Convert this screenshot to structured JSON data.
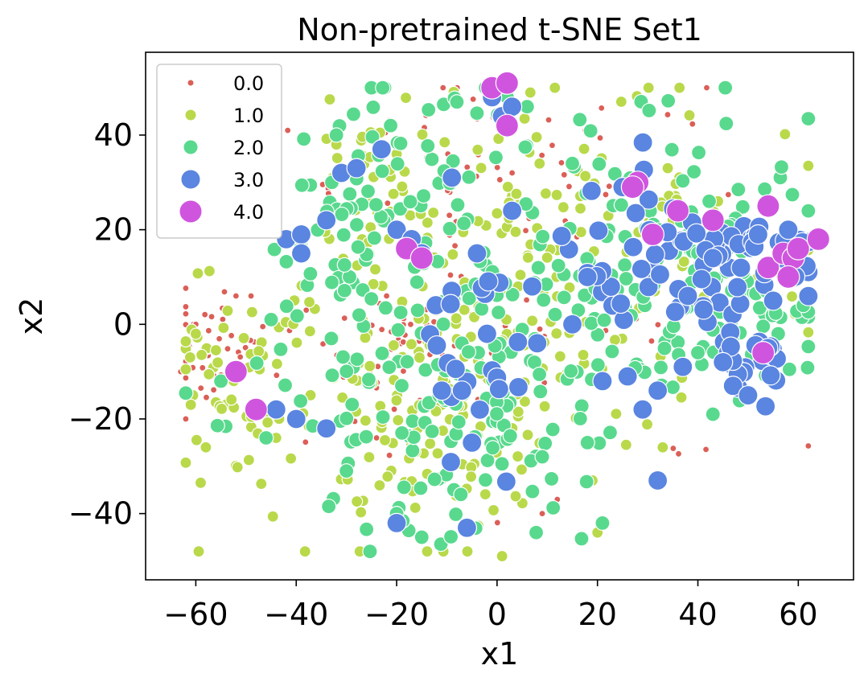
{
  "chart_data": {
    "type": "scatter",
    "title": "Non-pretrained t-SNE Set1",
    "xlabel": "x1",
    "ylabel": "x2",
    "xlim": [
      -70,
      71
    ],
    "ylim": [
      -54,
      57.5
    ],
    "xticks": [
      -60,
      -40,
      -20,
      0,
      20,
      40,
      60
    ],
    "yticks": [
      -40,
      -20,
      0,
      20,
      40
    ],
    "xtick_labels": [
      "−60",
      "−40",
      "−20",
      "0",
      "20",
      "40",
      "60"
    ],
    "ytick_labels": [
      "−40",
      "−20",
      "0",
      "20",
      "40"
    ],
    "grid": false,
    "legend_position": "upper-left",
    "seed": 7,
    "series": [
      {
        "name": "0.0",
        "color": "#db5f57",
        "marker_radius": 4,
        "clusters": [
          [
            -55,
            -5,
            6,
            6,
            40
          ],
          [
            -15,
            -8,
            10,
            8,
            55
          ],
          [
            0,
            15,
            25,
            20,
            90
          ],
          [
            -5,
            40,
            10,
            8,
            20
          ]
        ],
        "points": [
          [
            -63,
            -10
          ],
          [
            -60,
            0
          ],
          [
            -52,
            6
          ],
          [
            -49,
            6
          ],
          [
            -44,
            -8
          ],
          [
            -38,
            3
          ],
          [
            -24,
            -24
          ],
          [
            -22,
            6
          ],
          [
            2,
            51
          ],
          [
            3,
            32
          ],
          [
            11,
            -23
          ],
          [
            12,
            -37
          ],
          [
            20,
            28
          ],
          [
            9,
            -40
          ]
        ]
      },
      {
        "name": "1.0",
        "color": "#b9d94b",
        "marker_radius": 7,
        "clusters": [
          [
            -52,
            -10,
            6,
            9,
            55
          ],
          [
            -10,
            -15,
            18,
            16,
            170
          ],
          [
            20,
            20,
            22,
            18,
            110
          ],
          [
            -22,
            30,
            10,
            9,
            40
          ]
        ],
        "points": [
          [
            -61,
            -17
          ],
          [
            -60,
            -2
          ],
          [
            -58,
            -26
          ],
          [
            -44,
            -24
          ],
          [
            -20,
            36
          ],
          [
            -32,
            38
          ],
          [
            3,
            51
          ],
          [
            1,
            -49
          ],
          [
            20,
            -44
          ],
          [
            19,
            -33
          ],
          [
            33,
            -26
          ],
          [
            34,
            33
          ],
          [
            44,
            26
          ],
          [
            52,
            10
          ]
        ]
      },
      {
        "name": "2.0",
        "color": "#59d98e",
        "marker_radius": 9,
        "clusters": [
          [
            -8,
            -15,
            18,
            16,
            150
          ],
          [
            25,
            15,
            20,
            14,
            130
          ],
          [
            -28,
            20,
            10,
            10,
            45
          ],
          [
            48,
            2,
            9,
            9,
            45
          ],
          [
            -15,
            40,
            10,
            8,
            25
          ]
        ],
        "points": [
          [
            -32,
            40
          ],
          [
            -39,
            18
          ],
          [
            -33,
            -3
          ],
          [
            -30,
            -31
          ],
          [
            -20,
            -40
          ],
          [
            -15,
            -45
          ],
          [
            -8,
            47
          ],
          [
            2,
            48
          ],
          [
            6,
            46
          ],
          [
            9,
            -28
          ],
          [
            15,
            34
          ],
          [
            18,
            -25
          ],
          [
            21,
            -42
          ],
          [
            32,
            -33
          ],
          [
            40,
            -6
          ],
          [
            43,
            -19
          ],
          [
            49,
            11
          ],
          [
            56,
            -2
          ],
          [
            58,
            18
          ],
          [
            61,
            4
          ],
          [
            -55,
            -12
          ],
          [
            -45,
            1
          ],
          [
            -46,
            -24
          ]
        ]
      },
      {
        "name": "3.0",
        "color": "#5a85e0",
        "marker_radius": 12,
        "clusters": [
          [
            34,
            12,
            12,
            8,
            60
          ],
          [
            50,
            -10,
            5,
            5,
            20
          ],
          [
            56,
            15,
            5,
            6,
            20
          ],
          [
            -3,
            -15,
            6,
            10,
            14
          ],
          [
            -5,
            10,
            5,
            4,
            8
          ]
        ],
        "points": [
          [
            -1,
            48
          ],
          [
            1,
            44
          ],
          [
            3,
            46
          ],
          [
            -31,
            32
          ],
          [
            -23,
            37
          ],
          [
            -42,
            18
          ],
          [
            -39,
            19
          ],
          [
            -34,
            22
          ],
          [
            -39,
            15
          ],
          [
            -28,
            33
          ],
          [
            -20,
            20
          ],
          [
            -17,
            18
          ],
          [
            -15,
            15
          ],
          [
            -9,
            31
          ],
          [
            -4,
            15
          ],
          [
            3,
            24
          ],
          [
            7,
            8
          ],
          [
            -2,
            -2
          ],
          [
            8,
            -4
          ],
          [
            -7,
            -14
          ],
          [
            -5,
            -25
          ],
          [
            -11,
            -14
          ],
          [
            -20,
            -42
          ],
          [
            -6,
            -43
          ],
          [
            -44,
            -18
          ],
          [
            -40,
            -20
          ],
          [
            -34,
            -22
          ],
          [
            15,
            0
          ],
          [
            18,
            10
          ],
          [
            25,
            29
          ],
          [
            29,
            -18
          ],
          [
            26,
            -11
          ],
          [
            21,
            -12
          ],
          [
            32,
            -14
          ],
          [
            32,
            -33
          ],
          [
            43,
            14
          ],
          [
            38,
            6
          ],
          [
            45,
            -8
          ],
          [
            37,
            -9
          ],
          [
            52,
            19
          ],
          [
            58,
            20
          ],
          [
            55,
            5
          ],
          [
            47,
            -13
          ],
          [
            50,
            -15
          ],
          [
            54,
            -5
          ]
        ]
      },
      {
        "name": "4.0",
        "color": "#d055de",
        "marker_radius": 14,
        "points": [
          [
            -1,
            50
          ],
          [
            2,
            51
          ],
          [
            2,
            42
          ],
          [
            28,
            30
          ],
          [
            27,
            29
          ],
          [
            31,
            19
          ],
          [
            36,
            24
          ],
          [
            43,
            22
          ],
          [
            54,
            25
          ],
          [
            54,
            12
          ],
          [
            57,
            15
          ],
          [
            59,
            14
          ],
          [
            60,
            16
          ],
          [
            64,
            18
          ],
          [
            58,
            10
          ],
          [
            53,
            -6
          ],
          [
            -18,
            16
          ],
          [
            -15,
            14
          ],
          [
            -52,
            -10
          ],
          [
            -48,
            -18
          ]
        ]
      }
    ]
  }
}
